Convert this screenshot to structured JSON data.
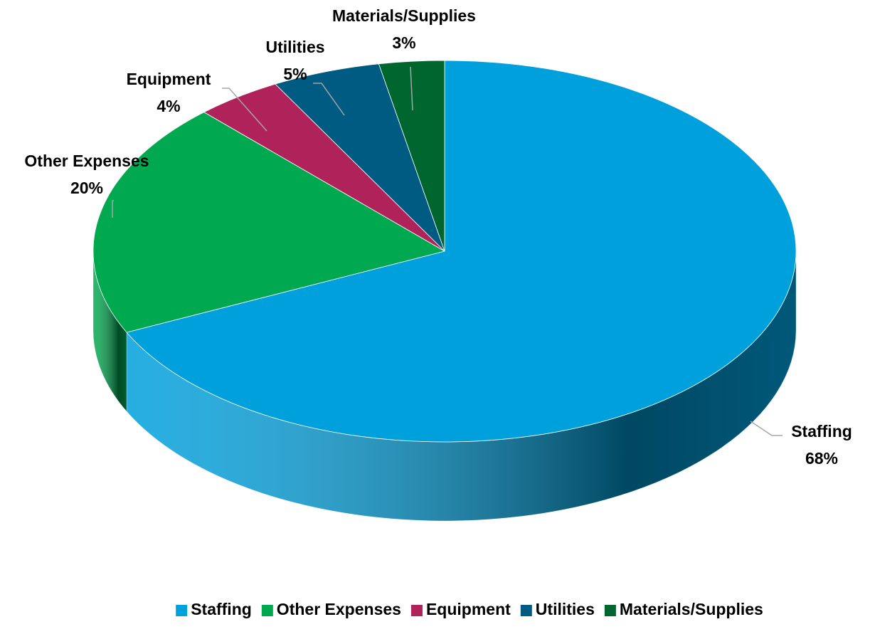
{
  "chart_data": {
    "type": "pie3d",
    "categories": [
      "Staffing",
      "Other Expenses",
      "Equipment",
      "Utilities",
      "Materials/Supplies"
    ],
    "values": [
      68,
      20,
      4,
      5,
      3
    ],
    "value_labels": [
      "68%",
      "20%",
      "4%",
      "5%",
      "3%"
    ],
    "colors": [
      "#00a0dc",
      "#00a84f",
      "#b0235a",
      "#005b82",
      "#00662f"
    ],
    "legend": "bottom"
  }
}
